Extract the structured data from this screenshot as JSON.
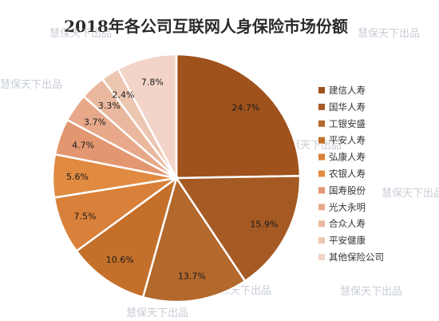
{
  "chart_data": {
    "type": "pie",
    "title": "2018年各公司互联网人身保险市场份额",
    "categories": [
      "建信人寿",
      "国华人寿",
      "工银安盛",
      "平安人寿",
      "弘康人寿",
      "农银人寿",
      "国寿股份",
      "光大永明",
      "合众人寿",
      "平安健康",
      "其他保险公司"
    ],
    "values": [
      24.7,
      15.9,
      13.7,
      10.6,
      7.5,
      5.6,
      4.7,
      3.7,
      3.3,
      2.4,
      7.8
    ],
    "value_labels": [
      "24.7%",
      "15.9%",
      "13.7%",
      "10.6%",
      "7.5%",
      "5.6%",
      "4.7%",
      "3.7%",
      "3.3%",
      "2.4%",
      "7.8%"
    ],
    "colors": [
      "#a0521c",
      "#a55a24",
      "#b3682c",
      "#c46f2a",
      "#d9803a",
      "#e18a42",
      "#e29770",
      "#e7a98a",
      "#eab89e",
      "#edc6b2",
      "#f2d5c8"
    ],
    "legend_position": "right",
    "start_angle": "top",
    "direction": "clockwise"
  },
  "watermark": "慧保天下出品"
}
